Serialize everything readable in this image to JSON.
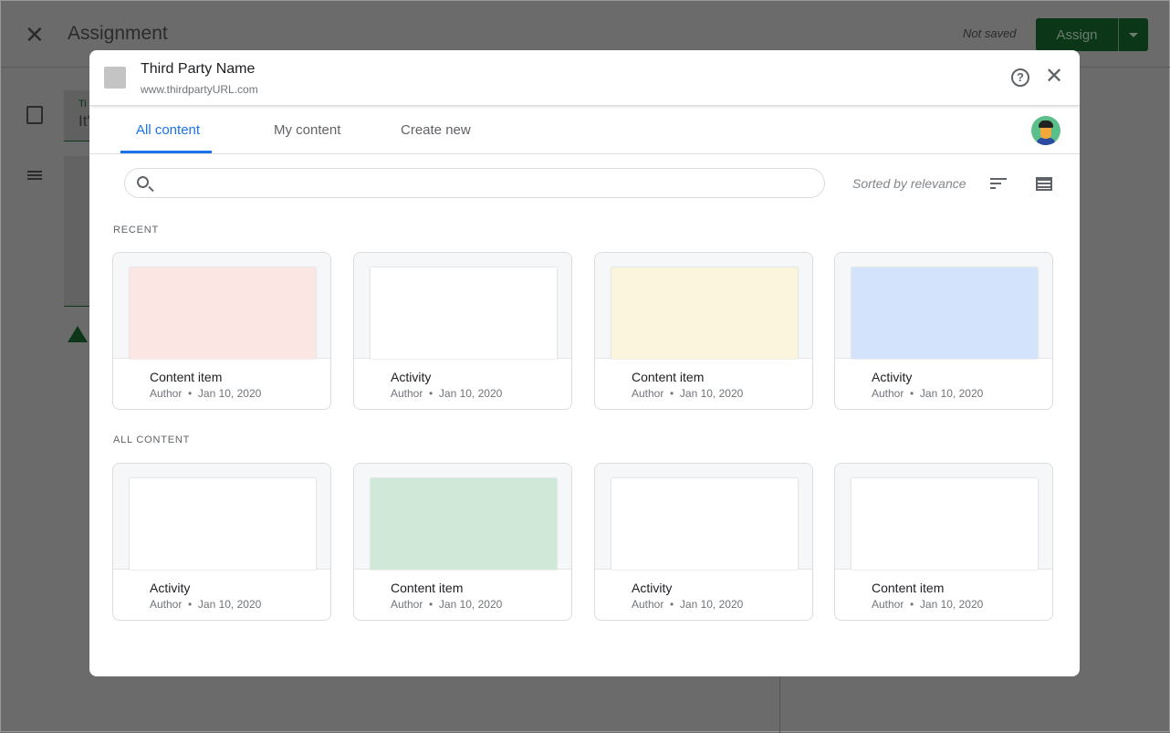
{
  "background": {
    "title": "Assignment",
    "status": "Not saved",
    "assign_label": "Assign",
    "field_text": "It'",
    "field_label": "Ti"
  },
  "modal": {
    "name": "Third Party Name",
    "url": "www.thirdpartyURL.com",
    "help": "?",
    "close": "✕",
    "tabs": [
      {
        "label": "All content",
        "active": true
      },
      {
        "label": "My content"
      },
      {
        "label": "Create new"
      }
    ],
    "search": {
      "placeholder": "",
      "value": ""
    },
    "sort_label": "Sorted by relevance",
    "sections": [
      {
        "title": "RECENT",
        "items": [
          {
            "title": "Content item",
            "author": "Author",
            "date": "Jan 10, 2020",
            "color": "#fbe6e4"
          },
          {
            "title": "Activity",
            "author": "Author",
            "date": "Jan 10, 2020",
            "color": "#ffffff"
          },
          {
            "title": "Content item",
            "author": "Author",
            "date": "Jan 10, 2020",
            "color": "#fcf5dd"
          },
          {
            "title": "Activity",
            "author": "Author",
            "date": "Jan 10, 2020",
            "color": "#d3e3fb"
          }
        ]
      },
      {
        "title": "ALL CONTENT",
        "items": [
          {
            "title": "Activity",
            "author": "Author",
            "date": "Jan 10, 2020",
            "color": "#ffffff"
          },
          {
            "title": "Content item",
            "author": "Author",
            "date": "Jan 10, 2020",
            "color": "#cfe8d8"
          },
          {
            "title": "Activity",
            "author": "Author",
            "date": "Jan 10, 2020",
            "color": "#ffffff"
          },
          {
            "title": "Content item",
            "author": "Author",
            "date": "Jan 10, 2020",
            "color": "#ffffff"
          }
        ]
      }
    ]
  }
}
